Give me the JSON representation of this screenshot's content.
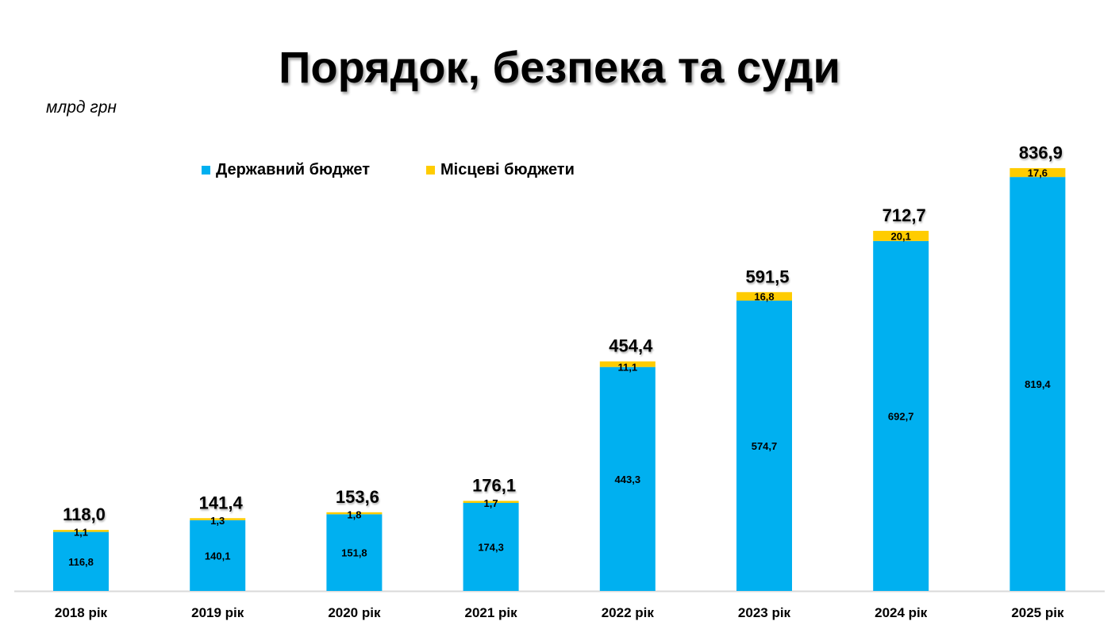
{
  "chart_data": {
    "type": "bar",
    "stacked": true,
    "title": "Порядок, безпека та суди",
    "unit_label": "млрд грн",
    "categories": [
      "2018 рік",
      "2019 рік",
      "2020 рік",
      "2021 рік",
      "2022 рік",
      "2023 рік",
      "2024 рік",
      "2025 рік"
    ],
    "series": [
      {
        "name": "Державний бюджет",
        "color": "#00B0F0",
        "values": [
          116.8,
          140.1,
          151.8,
          174.3,
          443.3,
          574.7,
          692.7,
          819.4
        ],
        "labels": [
          "116,8",
          "140,1",
          "151,8",
          "174,3",
          "443,3",
          "574,7",
          "692,7",
          "819,4"
        ]
      },
      {
        "name": "Місцеві бюджети",
        "color": "#FFCC00",
        "values": [
          1.1,
          1.3,
          1.8,
          1.7,
          11.1,
          16.8,
          20.1,
          17.6
        ],
        "labels": [
          "1,1",
          "1,3",
          "1,8",
          "1,7",
          "11,1",
          "16,8",
          "20,1",
          "17,6"
        ]
      }
    ],
    "totals": [
      118.0,
      141.4,
      153.6,
      176.1,
      454.4,
      591.5,
      712.7,
      836.9
    ],
    "total_labels": [
      "118,0",
      "141,4",
      "153,6",
      "176,1",
      "454,4",
      "591,5",
      "712,7",
      "836,9"
    ],
    "ylim": [
      0,
      836.9
    ],
    "grid": false,
    "legend": "top-left"
  }
}
